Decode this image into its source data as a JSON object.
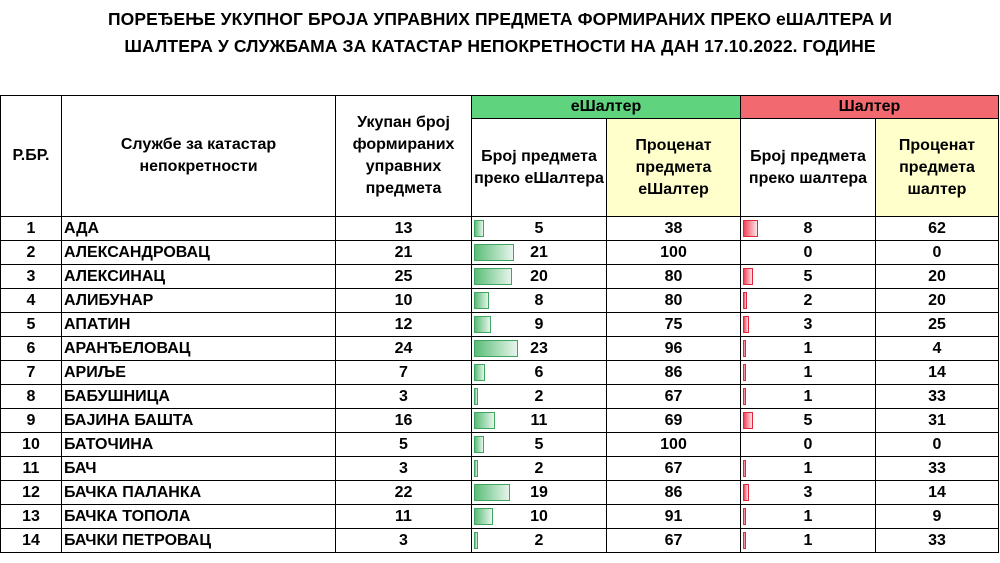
{
  "title": {
    "line1": "ПОРЕЂЕЊЕ УКУПНОГ БРОЈА УПРАВНИХ ПРЕДМЕТА ФОРМИРАНИХ ПРЕКО еШАЛТЕРА И",
    "line2": "ШАЛТЕРА У СЛУЖБАМА ЗА КАТАСТАР НЕПОКРЕТНОСТИ НА ДАН 17.10.2022. ГОДИНЕ"
  },
  "headers": {
    "rbr": "Р.БР.",
    "office": "Службе за катастар непокретности",
    "total": "Укупан број формираних управних предмета",
    "eshalter_group": "еШалтер",
    "shalter_group": "Шалтер",
    "e_count": "Број предмета преко еШалтера",
    "e_pct": "Проценат предмета еШалтер",
    "s_count": "Број предмета преко шалтера",
    "s_pct": "Проценат предмета шалтер"
  },
  "colors": {
    "eshalter_header": "#5fd37e",
    "shalter_header": "#f26a6f",
    "highlight": "#ffffcc",
    "bar_green": "#5bbd79",
    "bar_red": "#f0455a"
  },
  "bar_max": 23,
  "rows": [
    {
      "n": "1",
      "name": "АДА",
      "total": 13,
      "e": 5,
      "ep": 38,
      "s": 8,
      "sp": 62
    },
    {
      "n": "2",
      "name": "АЛЕКСАНДРОВАЦ",
      "total": 21,
      "e": 21,
      "ep": 100,
      "s": 0,
      "sp": 0
    },
    {
      "n": "3",
      "name": "АЛЕКСИНАЦ",
      "total": 25,
      "e": 20,
      "ep": 80,
      "s": 5,
      "sp": 20
    },
    {
      "n": "4",
      "name": "АЛИБУНАР",
      "total": 10,
      "e": 8,
      "ep": 80,
      "s": 2,
      "sp": 20
    },
    {
      "n": "5",
      "name": "АПАТИН",
      "total": 12,
      "e": 9,
      "ep": 75,
      "s": 3,
      "sp": 25
    },
    {
      "n": "6",
      "name": "АРАНЂЕЛОВАЦ",
      "total": 24,
      "e": 23,
      "ep": 96,
      "s": 1,
      "sp": 4
    },
    {
      "n": "7",
      "name": "АРИЉЕ",
      "total": 7,
      "e": 6,
      "ep": 86,
      "s": 1,
      "sp": 14
    },
    {
      "n": "8",
      "name": "БАБУШНИЦА",
      "total": 3,
      "e": 2,
      "ep": 67,
      "s": 1,
      "sp": 33
    },
    {
      "n": "9",
      "name": "БАЈИНА БАШТА",
      "total": 16,
      "e": 11,
      "ep": 69,
      "s": 5,
      "sp": 31
    },
    {
      "n": "10",
      "name": "БАТОЧИНА",
      "total": 5,
      "e": 5,
      "ep": 100,
      "s": 0,
      "sp": 0
    },
    {
      "n": "11",
      "name": "БАЧ",
      "total": 3,
      "e": 2,
      "ep": 67,
      "s": 1,
      "sp": 33
    },
    {
      "n": "12",
      "name": "БАЧКА ПАЛАНКА",
      "total": 22,
      "e": 19,
      "ep": 86,
      "s": 3,
      "sp": 14
    },
    {
      "n": "13",
      "name": "БАЧКА ТОПОЛА",
      "total": 11,
      "e": 10,
      "ep": 91,
      "s": 1,
      "sp": 9
    },
    {
      "n": "14",
      "name": "БАЧКИ ПЕТРОВАЦ",
      "total": 3,
      "e": 2,
      "ep": 67,
      "s": 1,
      "sp": 33
    }
  ]
}
